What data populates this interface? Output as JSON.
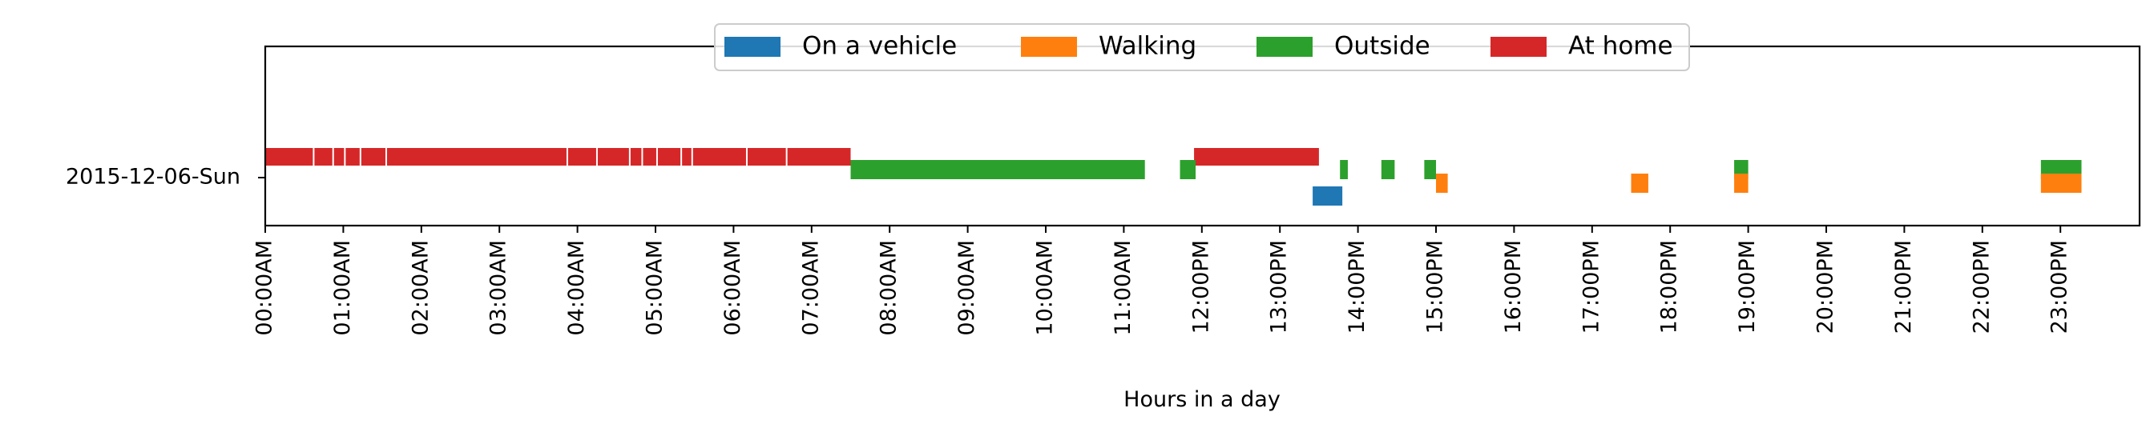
{
  "chart_data": {
    "type": "timeline",
    "xlabel": "Hours in a day",
    "row_label": "2015-12-06-Sun",
    "x_range_hours": [
      0,
      24
    ],
    "x_ticks": [
      "00:00AM",
      "01:00AM",
      "02:00AM",
      "03:00AM",
      "04:00AM",
      "05:00AM",
      "06:00AM",
      "07:00AM",
      "08:00AM",
      "09:00AM",
      "10:00AM",
      "11:00AM",
      "12:00PM",
      "13:00PM",
      "14:00PM",
      "15:00PM",
      "16:00PM",
      "17:00PM",
      "18:00PM",
      "19:00PM",
      "20:00PM",
      "21:00PM",
      "22:00PM",
      "23:00PM"
    ],
    "legend_position": "top-center",
    "grid": false,
    "legend": [
      {
        "name": "On a vehicle",
        "color": "#1f77b4"
      },
      {
        "name": "Walking",
        "color": "#ff7f0e"
      },
      {
        "name": "Outside",
        "color": "#2ca02c"
      },
      {
        "name": "At home",
        "color": "#d62728"
      }
    ],
    "series": [
      {
        "name": "At home",
        "lane": "top",
        "segments": [
          [
            0.0,
            7.5
          ],
          [
            11.9,
            13.5
          ]
        ]
      },
      {
        "name": "Outside",
        "lane": "middle",
        "segments": [
          [
            7.5,
            11.27
          ],
          [
            11.72,
            11.92
          ],
          [
            13.77,
            13.87
          ],
          [
            14.3,
            14.47
          ],
          [
            14.85,
            15.0
          ],
          [
            18.82,
            19.0
          ],
          [
            22.75,
            23.27
          ]
        ]
      },
      {
        "name": "Walking",
        "lane": "lower",
        "segments": [
          [
            15.0,
            15.15
          ],
          [
            17.5,
            17.72
          ],
          [
            18.82,
            19.0
          ],
          [
            22.75,
            23.27
          ]
        ]
      },
      {
        "name": "On a vehicle",
        "lane": "bottom",
        "segments": [
          [
            13.42,
            13.8
          ]
        ]
      }
    ],
    "at_home_gaps": [
      0.62,
      0.87,
      1.02,
      1.22,
      1.55,
      3.87,
      4.25,
      4.67,
      4.83,
      5.02,
      5.33,
      5.47,
      6.17,
      6.68
    ]
  }
}
